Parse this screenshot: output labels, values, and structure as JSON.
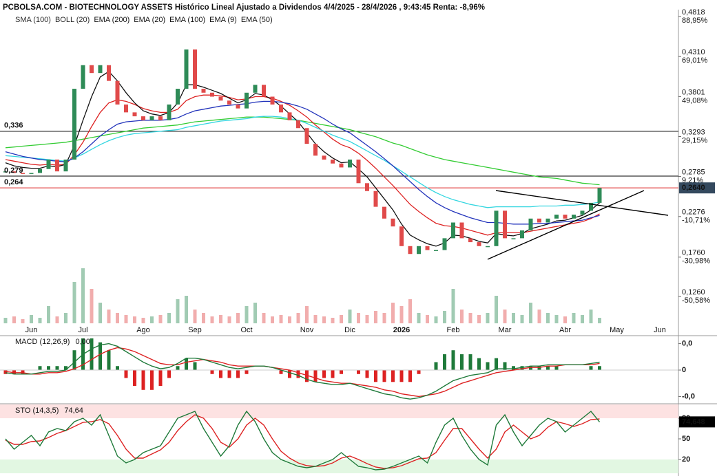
{
  "chart_data": [
    {
      "type": "candlestick",
      "title": "PCBOLSA.COM - BIOTECHNOLOGY ASSETS Histórico Lineal Ajustado a Dividendos 4/4/2025 - 28/4/2026 , 9:43:45 Renta: -8,96%",
      "inactive_indicators": [
        {
          "name": "SMA (100)",
          "color": "#a9d4f5"
        },
        {
          "name": "BOLL (20)",
          "color": "#bbbbbb"
        }
      ],
      "categories": [
        null,
        null,
        null,
        "Jun",
        null,
        null,
        null,
        null,
        null,
        "Jul",
        null,
        null,
        null,
        null,
        null,
        null,
        "Ago",
        null,
        null,
        null,
        null,
        null,
        "Sep",
        null,
        null,
        null,
        null,
        null,
        "Oct",
        null,
        null,
        null,
        null,
        null,
        null,
        "Nov",
        null,
        null,
        null,
        null,
        "Dic",
        null,
        null,
        null,
        null,
        null,
        "2026",
        null,
        null,
        null,
        null,
        null,
        "Feb",
        null,
        null,
        null,
        null,
        null,
        "Mar",
        null,
        null,
        null,
        null,
        null,
        null,
        "Abr",
        null,
        null,
        null,
        null,
        null,
        "May",
        null,
        null,
        null,
        null,
        "Jun",
        null
      ],
      "bold_categories": [
        "2026"
      ],
      "close": [
        0.285,
        0.283,
        0.282,
        0.283,
        0.288,
        0.3,
        0.285,
        0.3,
        0.39,
        0.42,
        0.41,
        0.42,
        0.4,
        0.37,
        0.36,
        0.355,
        0.35,
        0.355,
        0.35,
        0.37,
        0.39,
        0.44,
        0.39,
        0.385,
        0.38,
        0.375,
        0.37,
        0.365,
        0.385,
        0.395,
        0.38,
        0.37,
        0.36,
        0.35,
        0.34,
        0.32,
        0.305,
        0.3,
        0.295,
        0.29,
        0.3,
        0.27,
        0.26,
        0.24,
        0.225,
        0.215,
        0.19,
        0.18,
        0.19,
        0.185,
        0.185,
        0.2,
        0.22,
        0.2,
        0.195,
        0.19,
        0.19,
        0.235,
        0.2,
        0.2,
        0.21,
        0.225,
        0.22,
        0.225,
        0.23,
        0.225,
        0.23,
        0.235,
        0.245,
        0.264,
        null,
        null,
        null,
        null,
        null,
        null,
        null,
        null
      ],
      "up_color": "#2e8b57",
      "down_color": "#e04a4a",
      "series": [
        {
          "name": "EMA (200)",
          "color": "#33cc33",
          "values": [
            0.315,
            0.316,
            0.317,
            0.318,
            0.319,
            0.32,
            0.321,
            0.322,
            0.324,
            0.326,
            0.328,
            0.33,
            0.332,
            0.334,
            0.336,
            0.338,
            0.34,
            0.341,
            0.342,
            0.343,
            0.344,
            0.346,
            0.348,
            0.349,
            0.35,
            0.351,
            0.352,
            0.353,
            0.354,
            0.354,
            0.354,
            0.353,
            0.352,
            0.351,
            0.35,
            0.348,
            0.346,
            0.344,
            0.342,
            0.34,
            0.338,
            0.335,
            0.332,
            0.329,
            0.325,
            0.321,
            0.318,
            0.314,
            0.31,
            0.306,
            0.303,
            0.3,
            0.298,
            0.296,
            0.294,
            0.292,
            0.29,
            0.288,
            0.286,
            0.284,
            0.282,
            0.28,
            0.278,
            0.277,
            0.276,
            0.274,
            0.272,
            0.27,
            0.269,
            0.268,
            null,
            null,
            null,
            null,
            null,
            null,
            null,
            null
          ]
        },
        {
          "name": "EMA (20)",
          "color": "#dd2222",
          "values": [
            0.3,
            0.298,
            0.296,
            0.294,
            0.293,
            0.294,
            0.293,
            0.294,
            0.306,
            0.322,
            0.342,
            0.36,
            0.372,
            0.376,
            0.374,
            0.37,
            0.365,
            0.362,
            0.36,
            0.36,
            0.364,
            0.375,
            0.38,
            0.382,
            0.382,
            0.381,
            0.379,
            0.376,
            0.377,
            0.38,
            0.38,
            0.378,
            0.374,
            0.369,
            0.362,
            0.354,
            0.344,
            0.335,
            0.326,
            0.319,
            0.315,
            0.308,
            0.299,
            0.289,
            0.278,
            0.267,
            0.255,
            0.243,
            0.234,
            0.226,
            0.219,
            0.216,
            0.215,
            0.213,
            0.21,
            0.207,
            0.204,
            0.207,
            0.207,
            0.207,
            0.207,
            0.209,
            0.211,
            0.213,
            0.215,
            0.217,
            0.219,
            0.221,
            0.225,
            0.231,
            null,
            null,
            null,
            null,
            null,
            null,
            null,
            null
          ]
        },
        {
          "name": "EMA (100)",
          "color": "#33d6e0",
          "values": [
            0.305,
            0.304,
            0.303,
            0.302,
            0.301,
            0.3,
            0.299,
            0.298,
            0.302,
            0.307,
            0.313,
            0.319,
            0.324,
            0.328,
            0.331,
            0.333,
            0.334,
            0.335,
            0.336,
            0.337,
            0.338,
            0.341,
            0.343,
            0.345,
            0.347,
            0.349,
            0.35,
            0.351,
            0.352,
            0.354,
            0.355,
            0.355,
            0.354,
            0.352,
            0.35,
            0.346,
            0.341,
            0.336,
            0.331,
            0.327,
            0.323,
            0.317,
            0.311,
            0.305,
            0.299,
            0.292,
            0.285,
            0.278,
            0.271,
            0.264,
            0.258,
            0.253,
            0.249,
            0.246,
            0.243,
            0.241,
            0.239,
            0.24,
            0.24,
            0.24,
            0.24,
            0.24,
            0.241,
            0.241,
            0.241,
            0.242,
            0.242,
            0.243,
            0.244,
            0.246,
            null,
            null,
            null,
            null,
            null,
            null,
            null,
            null
          ]
        },
        {
          "name": "EMA (9)",
          "color": "#111111",
          "values": [
            0.296,
            0.292,
            0.29,
            0.289,
            0.289,
            0.292,
            0.291,
            0.294,
            0.318,
            0.35,
            0.38,
            0.405,
            0.412,
            0.4,
            0.385,
            0.372,
            0.362,
            0.358,
            0.356,
            0.36,
            0.372,
            0.395,
            0.395,
            0.392,
            0.388,
            0.384,
            0.378,
            0.372,
            0.376,
            0.384,
            0.382,
            0.376,
            0.368,
            0.358,
            0.348,
            0.334,
            0.32,
            0.31,
            0.302,
            0.296,
            0.297,
            0.288,
            0.278,
            0.264,
            0.25,
            0.236,
            0.218,
            0.204,
            0.198,
            0.193,
            0.19,
            0.194,
            0.204,
            0.203,
            0.2,
            0.196,
            0.194,
            0.206,
            0.204,
            0.203,
            0.206,
            0.212,
            0.215,
            0.218,
            0.222,
            0.223,
            0.226,
            0.229,
            0.236,
            0.245,
            null,
            null,
            null,
            null,
            null,
            null,
            null,
            null
          ]
        },
        {
          "name": "EMA (50)",
          "color": "#2233bb",
          "values": [
            0.31,
            0.307,
            0.304,
            0.302,
            0.3,
            0.299,
            0.298,
            0.297,
            0.302,
            0.31,
            0.32,
            0.33,
            0.338,
            0.345,
            0.348,
            0.349,
            0.35,
            0.35,
            0.35,
            0.351,
            0.353,
            0.358,
            0.362,
            0.364,
            0.366,
            0.368,
            0.369,
            0.37,
            0.371,
            0.373,
            0.374,
            0.374,
            0.373,
            0.371,
            0.368,
            0.364,
            0.358,
            0.352,
            0.345,
            0.339,
            0.334,
            0.326,
            0.318,
            0.31,
            0.301,
            0.292,
            0.282,
            0.272,
            0.262,
            0.253,
            0.245,
            0.239,
            0.234,
            0.23,
            0.226,
            0.223,
            0.22,
            0.22,
            0.219,
            0.218,
            0.218,
            0.218,
            0.219,
            0.219,
            0.22,
            0.221,
            0.222,
            0.223,
            0.226,
            0.229,
            null,
            null,
            null,
            null,
            null,
            null,
            null,
            null
          ]
        }
      ],
      "volume": [
        8,
        10,
        6,
        12,
        8,
        25,
        10,
        15,
        60,
        80,
        50,
        30,
        20,
        15,
        12,
        10,
        8,
        10,
        12,
        15,
        35,
        40,
        20,
        15,
        10,
        12,
        10,
        15,
        25,
        30,
        15,
        10,
        12,
        10,
        15,
        25,
        12,
        10,
        8,
        12,
        20,
        15,
        12,
        18,
        15,
        30,
        25,
        35,
        15,
        12,
        10,
        18,
        50,
        20,
        15,
        12,
        15,
        40,
        20,
        15,
        12,
        30,
        20,
        15,
        12,
        10,
        15,
        12,
        20,
        8,
        null,
        null,
        null,
        null,
        null,
        null,
        null,
        null
      ],
      "ylim": [
        0.0919,
        0.4906
      ],
      "yticks": [
        {
          "value": 0.4818,
          "label": "0,4818"
        },
        {
          "value": 0.431,
          "label": "0,4310"
        },
        {
          "value": 0.3801,
          "label": "0,3801"
        },
        {
          "value": 0.3293,
          "label": "0,3293"
        },
        {
          "value": 0.2785,
          "label": "0,2785"
        },
        {
          "value": 0.2276,
          "label": "0,2276"
        },
        {
          "value": 0.176,
          "label": "0,1760"
        },
        {
          "value": 0.126,
          "label": "0,1260"
        }
      ],
      "ytick_pct_labels": [
        "88,95%",
        "69,01%",
        "49,08%",
        "29,15%",
        "9,21%",
        "-10,71%",
        "-30,98%",
        "-50,58%"
      ],
      "levels": [
        {
          "value": 0.336,
          "label": "0,336",
          "color": "#000000"
        },
        {
          "value": 0.279,
          "label": "0,279",
          "color": "#000000"
        },
        {
          "value": 0.264,
          "label": "0,264",
          "color": "#dd2222"
        }
      ],
      "last": {
        "value": 0.264,
        "label": "0,2640"
      }
    },
    {
      "type": "macd",
      "title": "MACD (12,26,9)",
      "current_label": "0,00",
      "macd_color": "#1f7a3a",
      "signal_color": "#dd2222",
      "macd": [
        -0.002,
        -0.003,
        -0.003,
        -0.003,
        -0.002,
        -0.001,
        -0.001,
        0,
        0.006,
        0.012,
        0.016,
        0.019,
        0.02,
        0.018,
        0.014,
        0.01,
        0.006,
        0.003,
        0.001,
        0.002,
        0.005,
        0.009,
        0.009,
        0.008,
        0.006,
        0.004,
        0.002,
        0.001,
        0.002,
        0.003,
        0.003,
        0.002,
        0,
        -0.002,
        -0.004,
        -0.007,
        -0.009,
        -0.01,
        -0.011,
        -0.011,
        -0.01,
        -0.012,
        -0.014,
        -0.016,
        -0.018,
        -0.019,
        -0.021,
        -0.022,
        -0.021,
        -0.019,
        -0.016,
        -0.012,
        -0.008,
        -0.006,
        -0.004,
        -0.003,
        -0.002,
        0.001,
        0.001,
        0.001,
        0.002,
        0.003,
        0.003,
        0.004,
        0.004,
        0.004,
        0.004,
        0.004,
        0.005,
        0.006
      ],
      "signal": [
        -0.001,
        -0.002,
        -0.002,
        -0.003,
        -0.003,
        -0.002,
        -0.002,
        -0.001,
        0.001,
        0.004,
        0.008,
        0.012,
        0.015,
        0.017,
        0.016,
        0.014,
        0.011,
        0.008,
        0.005,
        0.004,
        0.004,
        0.006,
        0.007,
        0.008,
        0.007,
        0.006,
        0.004,
        0.003,
        0.003,
        0.003,
        0.003,
        0.002,
        0.001,
        0,
        -0.002,
        -0.004,
        -0.006,
        -0.008,
        -0.009,
        -0.01,
        -0.01,
        -0.011,
        -0.012,
        -0.013,
        -0.015,
        -0.016,
        -0.018,
        -0.019,
        -0.02,
        -0.019,
        -0.018,
        -0.016,
        -0.013,
        -0.01,
        -0.008,
        -0.006,
        -0.004,
        -0.002,
        -0.001,
        0,
        0.001,
        0.002,
        0.002,
        0.003,
        0.003,
        0.004,
        0.004,
        0.004,
        0.004,
        0.005
      ],
      "ylim": [
        -0.025,
        0.025
      ],
      "yticks": [
        {
          "value": 0.02,
          "label": "0,0"
        },
        0,
        {
          "value": -0.02,
          "label": "-0,0"
        }
      ]
    },
    {
      "type": "stochastic",
      "title": "STO (14,3,5)",
      "current_label": "74,64",
      "last_label": "74,648",
      "k_color": "#1f7a3a",
      "d_color": "#dd2222",
      "k": [
        50,
        35,
        45,
        55,
        40,
        60,
        65,
        62,
        75,
        80,
        70,
        85,
        55,
        25,
        15,
        20,
        30,
        35,
        40,
        60,
        80,
        85,
        90,
        65,
        45,
        25,
        40,
        70,
        90,
        75,
        50,
        30,
        20,
        15,
        10,
        8,
        10,
        15,
        20,
        30,
        20,
        10,
        8,
        5,
        6,
        10,
        15,
        20,
        25,
        15,
        45,
        70,
        80,
        55,
        35,
        20,
        12,
        70,
        85,
        60,
        40,
        55,
        70,
        80,
        75,
        60,
        70,
        80,
        90,
        74.648
      ],
      "d": [
        48,
        42,
        42,
        46,
        47,
        52,
        58,
        62,
        68,
        74,
        75,
        78,
        72,
        55,
        35,
        22,
        22,
        28,
        34,
        45,
        62,
        75,
        85,
        80,
        65,
        45,
        38,
        50,
        70,
        80,
        70,
        50,
        32,
        22,
        15,
        11,
        10,
        11,
        15,
        22,
        25,
        20,
        14,
        9,
        7,
        8,
        11,
        16,
        21,
        22,
        30,
        48,
        65,
        65,
        50,
        35,
        22,
        35,
        60,
        70,
        60,
        50,
        55,
        67,
        75,
        72,
        68,
        72,
        78,
        79
      ],
      "overbought": 80,
      "oversold": 20,
      "ylim": [
        0,
        100
      ],
      "yticks": [
        80,
        50,
        20
      ]
    }
  ]
}
